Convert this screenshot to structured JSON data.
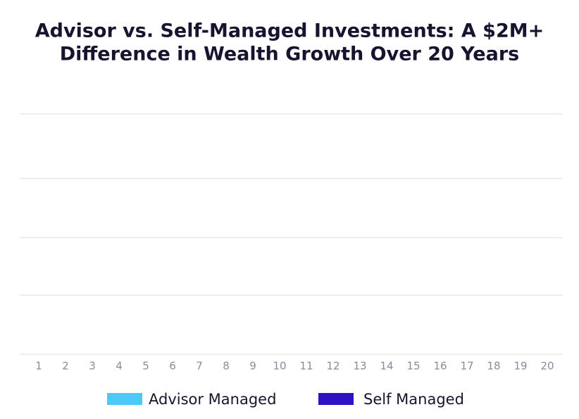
{
  "chart_data": {
    "type": "bar",
    "title": [
      "Advisor vs. Self-Managed Investments: A $2M+",
      "Difference in Wealth Growth Over 20 Years"
    ],
    "categories": [
      "1",
      "2",
      "3",
      "4",
      "5",
      "6",
      "7",
      "8",
      "9",
      "10",
      "11",
      "12",
      "13",
      "14",
      "15",
      "16",
      "17",
      "18",
      "19",
      "20"
    ],
    "series": [
      {
        "name": "Advisor Managed",
        "color": "#4cc9f8"
      },
      {
        "name": "Self Managed",
        "color": "#2e12c4"
      }
    ],
    "grid": true
  }
}
